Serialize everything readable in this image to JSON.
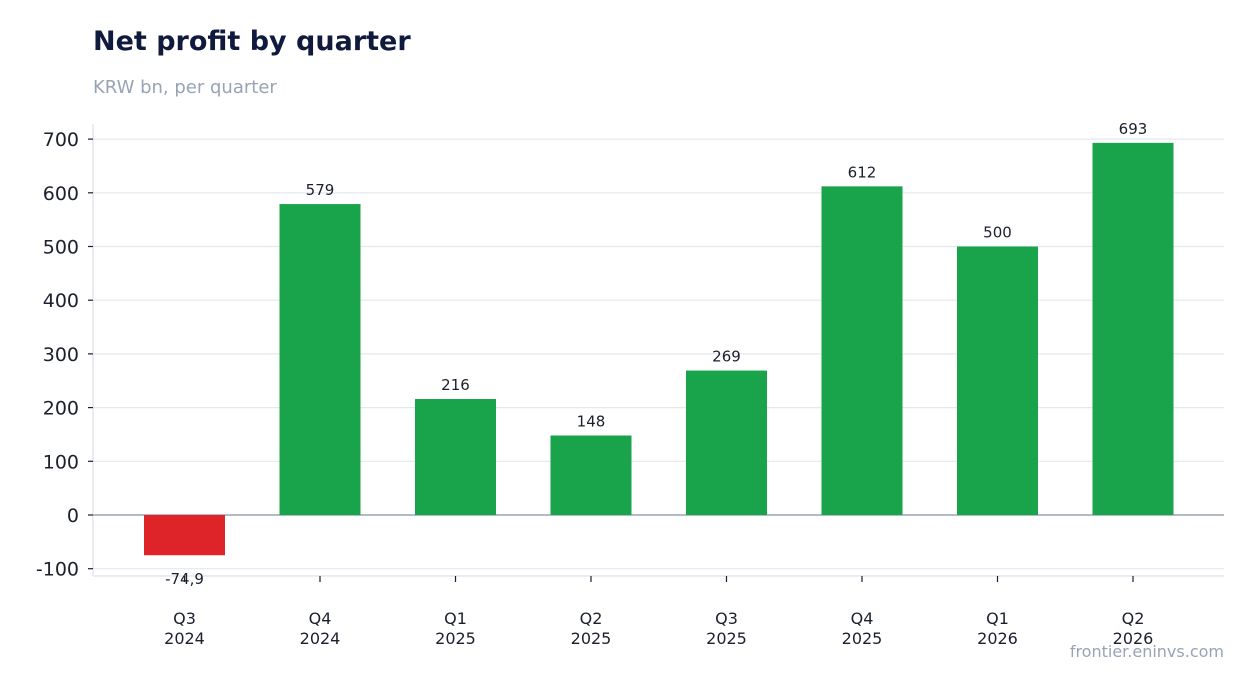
{
  "chart_data": {
    "type": "bar",
    "title": "Net profit by quarter",
    "subtitle": "KRW bn, per quarter",
    "categories": [
      [
        "Q3",
        "2024"
      ],
      [
        "Q4",
        "2024"
      ],
      [
        "Q1",
        "2025"
      ],
      [
        "Q2",
        "2025"
      ],
      [
        "Q3",
        "2025"
      ],
      [
        "Q4",
        "2025"
      ],
      [
        "Q1",
        "2026"
      ],
      [
        "Q2",
        "2026"
      ]
    ],
    "values": [
      -74.9,
      579,
      216,
      148,
      269,
      612,
      500,
      693
    ],
    "data_labels": [
      "-74,9",
      "579",
      "216",
      "148",
      "269",
      "612",
      "500",
      "693"
    ],
    "ylim": [
      -110,
      730
    ],
    "yticks": [
      -100,
      0,
      100,
      200,
      300,
      400,
      500,
      600,
      700
    ],
    "ytick_labels": [
      "-100",
      "0",
      "100",
      "200",
      "300",
      "400",
      "500",
      "600",
      "700"
    ],
    "grid": true,
    "legend": "none",
    "colors": {
      "positive": "#19a34a",
      "negative": "#de2428",
      "grid": "#e3e8ef",
      "zero_line": "#9aa5b1",
      "axis": "#e3e8ef"
    }
  },
  "watermark": "frontier.eninvs.com"
}
